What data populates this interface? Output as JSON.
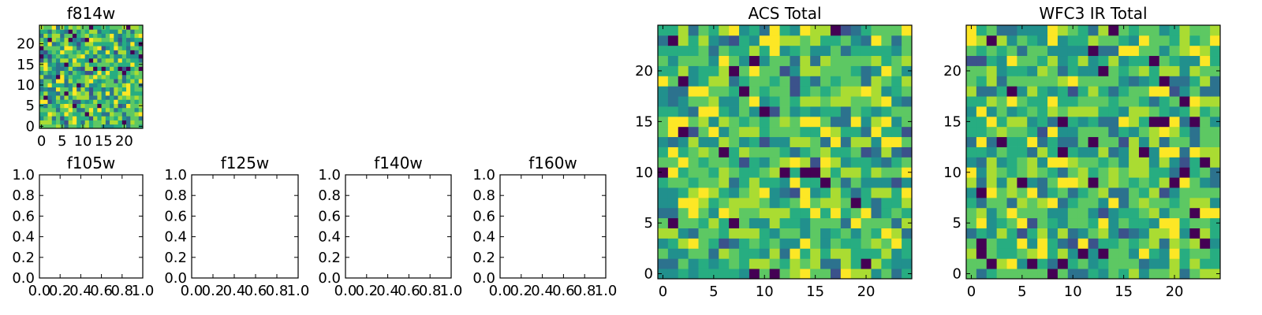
{
  "chart_data": [
    {
      "type": "heatmap",
      "title": "f814w",
      "xlabel": "",
      "ylabel": "",
      "xlim": [
        -0.5,
        24.5
      ],
      "ylim": [
        -0.5,
        24.5
      ],
      "xticks": [
        0,
        5,
        10,
        15,
        20
      ],
      "yticks": [
        0,
        5,
        10,
        15,
        20
      ],
      "grid_size": 25,
      "seed": 11,
      "colormap": "viridis",
      "grid": false
    },
    {
      "type": "heatmap",
      "title": "f105w",
      "xlim": [
        0,
        1
      ],
      "ylim": [
        0,
        1
      ],
      "xticks": [
        "0.0",
        "0.2",
        "0.4",
        "0.6",
        "0.8",
        "1.0"
      ],
      "yticks": [
        "0.0",
        "0.2",
        "0.4",
        "0.6",
        "0.8",
        "1.0"
      ],
      "empty": true
    },
    {
      "type": "heatmap",
      "title": "f125w",
      "xlim": [
        0,
        1
      ],
      "ylim": [
        0,
        1
      ],
      "xticks": [
        "0.0",
        "0.2",
        "0.4",
        "0.6",
        "0.8",
        "1.0"
      ],
      "yticks": [
        "0.0",
        "0.2",
        "0.4",
        "0.6",
        "0.8",
        "1.0"
      ],
      "empty": true
    },
    {
      "type": "heatmap",
      "title": "f140w",
      "xlim": [
        0,
        1
      ],
      "ylim": [
        0,
        1
      ],
      "xticks": [
        "0.0",
        "0.2",
        "0.4",
        "0.6",
        "0.8",
        "1.0"
      ],
      "yticks": [
        "0.0",
        "0.2",
        "0.4",
        "0.6",
        "0.8",
        "1.0"
      ],
      "empty": true
    },
    {
      "type": "heatmap",
      "title": "f160w",
      "xlim": [
        0,
        1
      ],
      "ylim": [
        0,
        1
      ],
      "xticks": [
        "0.0",
        "0.2",
        "0.4",
        "0.6",
        "0.8",
        "1.0"
      ],
      "yticks": [
        "0.0",
        "0.2",
        "0.4",
        "0.6",
        "0.8",
        "1.0"
      ],
      "empty": true
    },
    {
      "type": "heatmap",
      "title": "ACS Total",
      "xlim": [
        -0.5,
        24.5
      ],
      "ylim": [
        -0.5,
        24.5
      ],
      "xticks": [
        0,
        5,
        10,
        15,
        20
      ],
      "yticks": [
        0,
        5,
        10,
        15,
        20
      ],
      "grid_size": 25,
      "seed": 29,
      "colormap": "viridis",
      "grid": false
    },
    {
      "type": "heatmap",
      "title": "WFC3 IR Total",
      "xlim": [
        -0.5,
        24.5
      ],
      "ylim": [
        -0.5,
        24.5
      ],
      "xticks": [
        0,
        5,
        10,
        15,
        20
      ],
      "yticks": [
        0,
        5,
        10,
        15,
        20
      ],
      "grid_size": 25,
      "seed": 47,
      "colormap": "viridis",
      "grid": false
    }
  ]
}
